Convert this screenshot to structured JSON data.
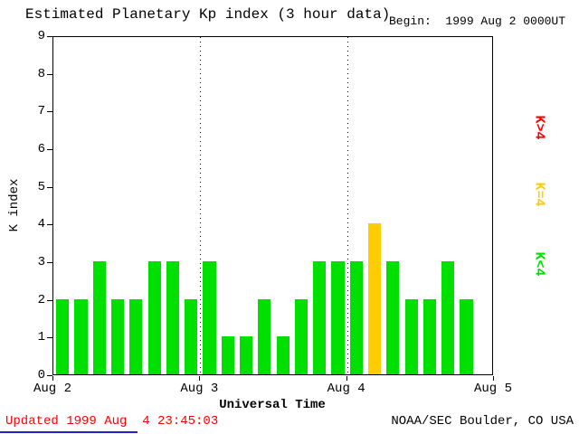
{
  "header": {
    "title": "Estimated Planetary Kp index (3 hour data)",
    "begin_label": "Begin:  1999 Aug 2 0000UT"
  },
  "chart_data": {
    "type": "bar",
    "title": "Estimated Planetary Kp index (3 hour data)",
    "xlabel": "Universal Time",
    "ylabel": "K index",
    "ylim": [
      0,
      9
    ],
    "y_ticks": [
      0,
      1,
      2,
      3,
      4,
      5,
      6,
      7,
      8,
      9
    ],
    "x_tick_labels": [
      "Aug 2",
      "Aug 3",
      "Aug 4",
      "Aug 5"
    ],
    "interval_hours": 3,
    "slots_per_day": 8,
    "num_slots": 24,
    "gridlines_at_slots": [
      8,
      16
    ],
    "values": [
      2,
      2,
      3,
      2,
      2,
      3,
      3,
      2,
      3,
      1,
      1,
      2,
      1,
      2,
      3,
      3,
      3,
      4,
      3,
      2,
      2,
      3,
      2
    ],
    "bar_colors": {
      "below4": "#00e000",
      "equal4": "#ffcc00",
      "above4": "#ff0000"
    },
    "legend": [
      {
        "label": "K>4",
        "color": "#ff0000"
      },
      {
        "label": "K=4",
        "color": "#ffcc00"
      },
      {
        "label": "K<4",
        "color": "#00e000"
      }
    ]
  },
  "footer": {
    "updated": "Updated 1999 Aug  4 23:45:03",
    "updated_color": "#ff0000",
    "credit": "NOAA/SEC Boulder, CO USA"
  }
}
